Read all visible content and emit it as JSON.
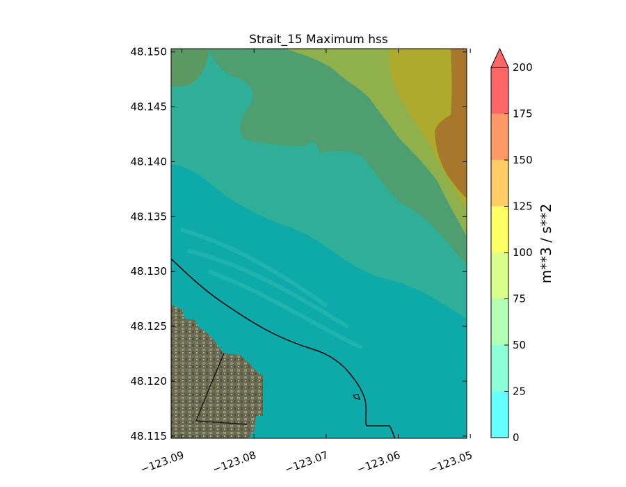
{
  "chart_data": {
    "type": "heatmap",
    "title": "Strait_15 Maximum hss",
    "xlabel": "",
    "ylabel": "",
    "xlim": [
      -123.0915,
      -123.0505
    ],
    "ylim": [
      48.1148,
      48.1503
    ],
    "x_ticks": [
      {
        "value": -123.09,
        "label": "−123.09"
      },
      {
        "value": -123.08,
        "label": "−123.08"
      },
      {
        "value": -123.07,
        "label": "−123.07"
      },
      {
        "value": -123.06,
        "label": "−123.06"
      },
      {
        "value": -123.05,
        "label": "−123.05"
      }
    ],
    "y_ticks": [
      {
        "value": 48.115,
        "label": "48.115"
      },
      {
        "value": 48.12,
        "label": "48.120"
      },
      {
        "value": 48.125,
        "label": "48.125"
      },
      {
        "value": 48.13,
        "label": "48.130"
      },
      {
        "value": 48.135,
        "label": "48.135"
      },
      {
        "value": 48.14,
        "label": "48.140"
      },
      {
        "value": 48.145,
        "label": "48.145"
      },
      {
        "value": 48.15,
        "label": "48.150"
      }
    ],
    "colorbar": {
      "label": "m**3 / s**2",
      "ticks": [
        "0",
        "25",
        "50",
        "75",
        "100",
        "125",
        "150",
        "175",
        "200"
      ],
      "levels": [
        0,
        25,
        50,
        75,
        100,
        125,
        150,
        175,
        200
      ],
      "colors": [
        "#66ffff",
        "#8cffd9",
        "#b3ffb3",
        "#d9ff8c",
        "#ffff66",
        "#ffcc66",
        "#ff9966",
        "#ff6666"
      ],
      "extend": "max",
      "extend_color": "#ff6666"
    },
    "contour_bands": [
      {
        "range": "0-25",
        "color": "#66ffff",
        "region": "nearshore and southern half"
      },
      {
        "range": "25-50",
        "color": "#8cffd9",
        "region": "middle strip"
      },
      {
        "range": "50-75",
        "color": "#b3ffb3",
        "region": "upper area"
      },
      {
        "range": "75-100",
        "color": "#d9ff8c",
        "region": "north-east"
      },
      {
        "range": "100-125",
        "color": "#ffff66",
        "region": "north-east"
      },
      {
        "range": "125-150",
        "color": "#ffcc66",
        "region": "north-east corner"
      }
    ],
    "shoreline": "black line"
  }
}
